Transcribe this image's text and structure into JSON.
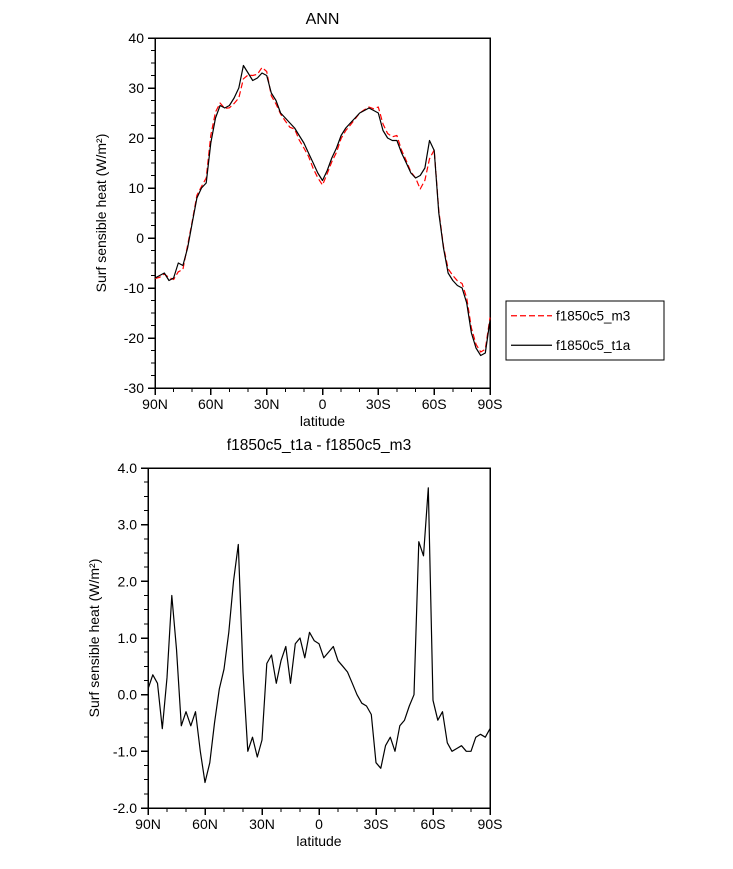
{
  "figure": {
    "background": "#ffffff",
    "frame_color": "#000000"
  },
  "chart_data": [
    {
      "type": "line",
      "title": "ANN",
      "xlabel": "latitude",
      "ylabel": "Surf sensible heat (W/m²)",
      "xlim": [
        90,
        -90
      ],
      "ylim": [
        -30,
        40
      ],
      "grid": false,
      "legend_position": "right-outside",
      "xticks": [
        {
          "v": 90,
          "label": "90N"
        },
        {
          "v": 60,
          "label": "60N"
        },
        {
          "v": 30,
          "label": "30N"
        },
        {
          "v": 0,
          "label": "0"
        },
        {
          "v": -30,
          "label": "30S"
        },
        {
          "v": -60,
          "label": "60S"
        },
        {
          "v": -90,
          "label": "90S"
        }
      ],
      "yticks": [
        {
          "v": -30,
          "label": "-30"
        },
        {
          "v": -20,
          "label": "-20"
        },
        {
          "v": -10,
          "label": "-10"
        },
        {
          "v": 0,
          "label": "0"
        },
        {
          "v": 10,
          "label": "10"
        },
        {
          "v": 20,
          "label": "20"
        },
        {
          "v": 30,
          "label": "30"
        },
        {
          "v": 40,
          "label": "40"
        }
      ],
      "x": [
        90,
        87.5,
        85,
        82.5,
        80,
        77.5,
        75,
        72.5,
        70,
        67.5,
        65,
        62.5,
        60,
        57.5,
        55,
        52.5,
        50,
        47.5,
        45,
        42.5,
        40,
        37.5,
        35,
        32.5,
        30,
        27.5,
        25,
        22.5,
        20,
        17.5,
        15,
        12.5,
        10,
        7.5,
        5,
        2.5,
        0,
        -2.5,
        -5,
        -7.5,
        -10,
        -12.5,
        -15,
        -17.5,
        -20,
        -22.5,
        -25,
        -27.5,
        -30,
        -32.5,
        -35,
        -37.5,
        -40,
        -42.5,
        -45,
        -47.5,
        -50,
        -52.5,
        -55,
        -57.5,
        -60,
        -62.5,
        -65,
        -67.5,
        -70,
        -72.5,
        -75,
        -77.5,
        -80,
        -82.5,
        -85,
        -87.5,
        -90
      ],
      "series": [
        {
          "name": "f1850c5_m3",
          "color": "#ff0000",
          "dash": "6,3",
          "values": [
            -8.1,
            -7.85,
            -7.2,
            -7.9,
            -8.3,
            -6.75,
            -6.3,
            -1.45,
            3.3,
            8.55,
            10.3,
            12,
            20.55,
            25.2,
            27,
            25.9,
            26.05,
            26.9,
            28,
            31.85,
            32.6,
            32.5,
            32.75,
            34.1,
            33.3,
            28.45,
            26.8,
            24.8,
            23.4,
            22.15,
            21.8,
            19.6,
            18,
            16.35,
            13.9,
            12.05,
            10.6,
            12.85,
            15.25,
            17.15,
            19.9,
            21.5,
            22.6,
            23.8,
            25,
            25.65,
            26.2,
            25.85,
            26.2,
            22.8,
            20.9,
            20.25,
            20.5,
            17.55,
            15.45,
            13.2,
            12,
            9.8,
            11.55,
            15.85,
            17.6,
            5.45,
            -1.7,
            -6.15,
            -7.5,
            -8.55,
            -9.1,
            -12,
            -18,
            -21.25,
            -22.8,
            -22.25,
            -15.9
          ]
        },
        {
          "name": "f1850c5_t1a",
          "color": "#000000",
          "dash": "",
          "values": [
            -8,
            -7.5,
            -7,
            -8.5,
            -8,
            -5,
            -5.5,
            -2,
            3,
            8,
            10,
            11,
            19,
            24,
            26.5,
            26,
            26.5,
            28,
            30,
            34.5,
            33,
            31.5,
            32,
            33,
            32.5,
            29,
            27.5,
            25,
            24,
            23,
            22,
            20.5,
            19,
            17,
            15,
            13,
            11.5,
            13.5,
            16,
            18,
            20.5,
            22,
            23,
            24,
            25,
            25.5,
            26,
            25.5,
            25,
            21.5,
            20,
            19.5,
            19.5,
            17,
            15,
            13,
            12,
            12.5,
            14,
            19.5,
            17.5,
            5,
            -2,
            -7,
            -8.5,
            -9.5,
            -10,
            -13,
            -19,
            -22,
            -23.5,
            -23,
            -16.5
          ]
        }
      ],
      "legend": true
    },
    {
      "type": "line",
      "title": "f1850c5_t1a - f1850c5_m3",
      "xlabel": "latitude",
      "ylabel": "Surf sensible heat (W/m²)",
      "xlim": [
        90,
        -90
      ],
      "ylim": [
        -2,
        4
      ],
      "grid": false,
      "legend_position": "none",
      "xticks": [
        {
          "v": 90,
          "label": "90N"
        },
        {
          "v": 60,
          "label": "60N"
        },
        {
          "v": 30,
          "label": "30N"
        },
        {
          "v": 0,
          "label": "0"
        },
        {
          "v": -30,
          "label": "30S"
        },
        {
          "v": -60,
          "label": "60S"
        },
        {
          "v": -90,
          "label": "90S"
        }
      ],
      "yticks": [
        {
          "v": -2,
          "label": "-2.0"
        },
        {
          "v": -1,
          "label": "-1.0"
        },
        {
          "v": 0,
          "label": "0.0"
        },
        {
          "v": 1,
          "label": "1.0"
        },
        {
          "v": 2,
          "label": "2.0"
        },
        {
          "v": 3,
          "label": "3.0"
        },
        {
          "v": 4,
          "label": "4.0"
        }
      ],
      "x": [
        90,
        87.5,
        85,
        82.5,
        80,
        77.5,
        75,
        72.5,
        70,
        67.5,
        65,
        62.5,
        60,
        57.5,
        55,
        52.5,
        50,
        47.5,
        45,
        42.5,
        40,
        37.5,
        35,
        32.5,
        30,
        27.5,
        25,
        22.5,
        20,
        17.5,
        15,
        12.5,
        10,
        7.5,
        5,
        2.5,
        0,
        -2.5,
        -5,
        -7.5,
        -10,
        -12.5,
        -15,
        -17.5,
        -20,
        -22.5,
        -25,
        -27.5,
        -30,
        -32.5,
        -35,
        -37.5,
        -40,
        -42.5,
        -45,
        -47.5,
        -50,
        -52.5,
        -55,
        -57.5,
        -60,
        -62.5,
        -65,
        -67.5,
        -70,
        -72.5,
        -75,
        -77.5,
        -80,
        -82.5,
        -85,
        -87.5,
        -90
      ],
      "series": [
        {
          "name": "difference",
          "color": "#000000",
          "dash": "",
          "values": [
            0.1,
            0.35,
            0.2,
            -0.6,
            0.3,
            1.75,
            0.8,
            -0.55,
            -0.3,
            -0.55,
            -0.3,
            -1.0,
            -1.55,
            -1.2,
            -0.5,
            0.1,
            0.45,
            1.1,
            2.0,
            2.65,
            0.4,
            -1.0,
            -0.75,
            -1.1,
            -0.8,
            0.55,
            0.7,
            0.2,
            0.6,
            0.85,
            0.2,
            0.9,
            1.0,
            0.65,
            1.1,
            0.95,
            0.9,
            0.65,
            0.75,
            0.85,
            0.6,
            0.5,
            0.4,
            0.2,
            0.0,
            -0.15,
            -0.2,
            -0.35,
            -1.2,
            -1.3,
            -0.9,
            -0.75,
            -1.0,
            -0.55,
            -0.45,
            -0.2,
            0.0,
            2.7,
            2.45,
            3.65,
            -0.1,
            -0.45,
            -0.3,
            -0.85,
            -1.0,
            -0.95,
            -0.9,
            -1.0,
            -1.0,
            -0.75,
            -0.7,
            -0.75,
            -0.6
          ]
        }
      ],
      "legend": false
    }
  ]
}
